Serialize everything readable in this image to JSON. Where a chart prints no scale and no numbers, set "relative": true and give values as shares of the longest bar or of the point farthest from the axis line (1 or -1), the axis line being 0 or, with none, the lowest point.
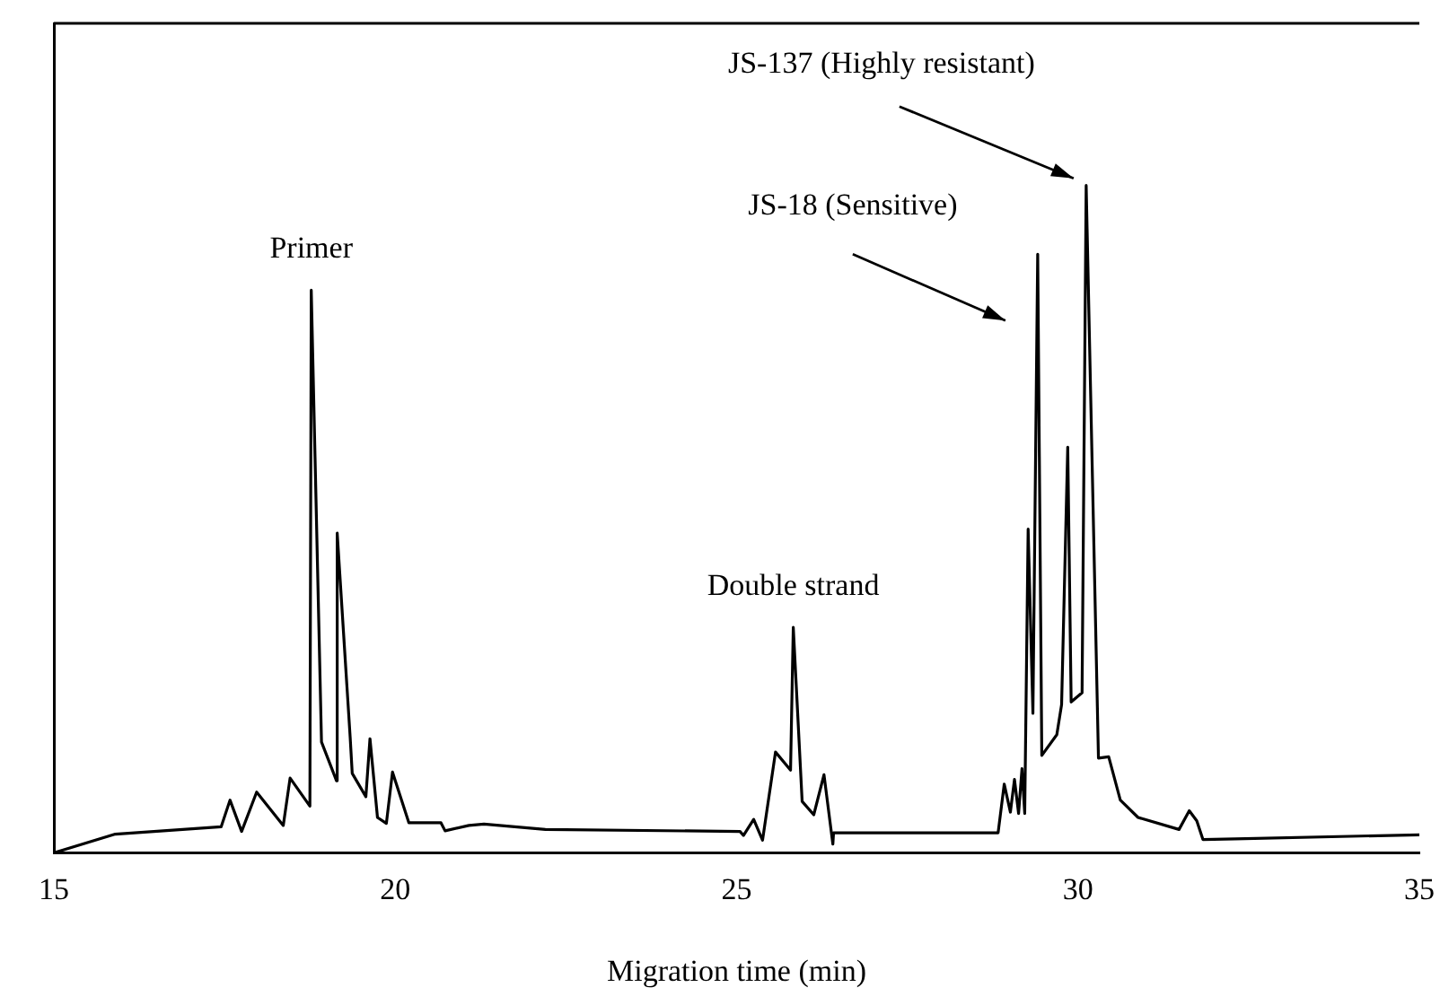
{
  "chart_data": {
    "type": "line",
    "relative": true,
    "xlabel": "Migration time (min)",
    "xlim": [
      15,
      35
    ],
    "xticks": [
      15,
      20,
      25,
      30,
      35
    ],
    "grid": false,
    "legend": false,
    "marker": "none",
    "line_style": "solid",
    "x": [
      15.0,
      15.9,
      17.45,
      17.58,
      17.75,
      17.97,
      18.36,
      18.46,
      18.75,
      18.77,
      18.92,
      19.14,
      19.15,
      19.34,
      19.37,
      19.57,
      19.63,
      19.74,
      19.87,
      19.96,
      20.2,
      20.67,
      20.73,
      21.08,
      21.3,
      22.2,
      25.05,
      25.1,
      25.25,
      25.38,
      25.57,
      25.79,
      25.83,
      25.96,
      26.13,
      26.28,
      26.41,
      26.42,
      28.83,
      28.92,
      29.01,
      29.07,
      29.13,
      29.18,
      29.22,
      29.27,
      29.34,
      29.41,
      29.47,
      29.69,
      29.76,
      29.85,
      29.9,
      30.06,
      30.12,
      30.3,
      30.45,
      30.62,
      30.88,
      31.48,
      31.63,
      31.74,
      31.83,
      32.3,
      35.0
    ],
    "series": [
      {
        "color": "#000000",
        "values": [
          0,
          0.028,
          0.039,
          0.079,
          0.032,
          0.091,
          0.041,
          0.112,
          0.07,
          0.843,
          0.166,
          0.108,
          0.479,
          0.173,
          0.119,
          0.084,
          0.171,
          0.053,
          0.044,
          0.121,
          0.045,
          0.045,
          0.033,
          0.041,
          0.043,
          0.035,
          0.032,
          0.026,
          0.05,
          0.019,
          0.151,
          0.124,
          0.338,
          0.077,
          0.057,
          0.117,
          0.013,
          0.03,
          0.03,
          0.103,
          0.061,
          0.11,
          0.059,
          0.126,
          0.059,
          0.485,
          0.209,
          0.897,
          0.146,
          0.177,
          0.222,
          0.608,
          0.226,
          0.24,
          1.0,
          0.142,
          0.144,
          0.079,
          0.053,
          0.035,
          0.063,
          0.048,
          0.02,
          0.021,
          0.027
        ]
      }
    ],
    "annotations": [
      {
        "text": "Primer",
        "x": 18.77,
        "y": 0.843
      },
      {
        "text": "Double strand",
        "x": 25.83,
        "y": 0.338
      },
      {
        "text": "JS-18 (Sensitive)",
        "x": 29.41,
        "y": 0.897
      },
      {
        "text": "JS-137 (Highly resistant)",
        "x": 30.12,
        "y": 1.0
      }
    ]
  }
}
